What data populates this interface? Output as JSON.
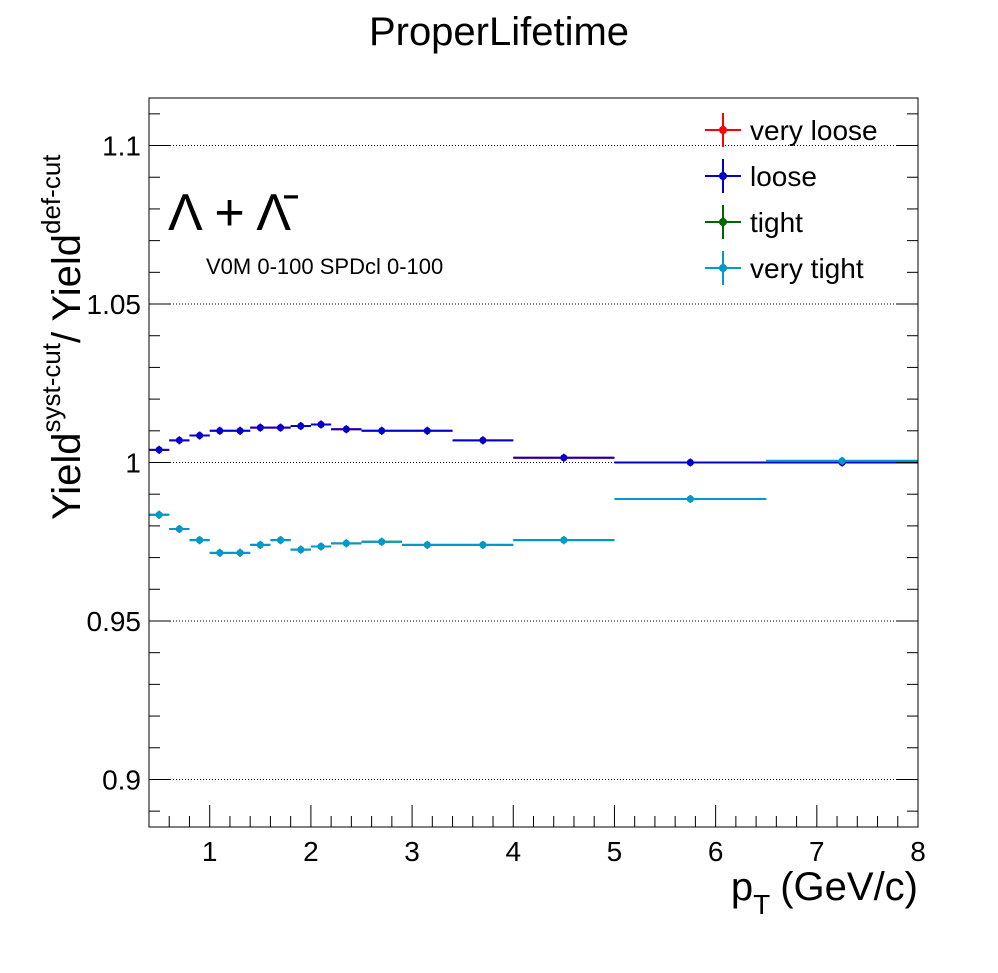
{
  "chart_data": {
    "type": "scatter",
    "title": "ProperLifetime",
    "xlabel": "p",
    "xlabel_sub": "T",
    "xlabel_unit": "(GeV/c)",
    "ylabel_main": "Yield",
    "ylabel_sup_main": "syst-cut",
    "ylabel_div": "/ Yield",
    "ylabel_sup_div": "def-cut",
    "xlim": [
      0.4,
      8.0
    ],
    "ylim": [
      0.885,
      1.115
    ],
    "xticks": [
      1,
      2,
      3,
      4,
      5,
      6,
      7,
      8
    ],
    "xtick_labels": [
      "1",
      "2",
      "3",
      "4",
      "5",
      "6",
      "7",
      "8"
    ],
    "yticks": [
      0.9,
      0.95,
      1.0,
      1.05,
      1.1
    ],
    "ytick_labels": [
      "0.9",
      "0.95",
      "1",
      "1.05",
      "1.1"
    ],
    "grid": "horizontal dotted",
    "legend_position": "top-right",
    "annotation_particle": "Λ + Λ̄",
    "annotation_centrality": "V0M 0-100 SPDcl 0-100",
    "bin_edges": [
      0.4,
      0.6,
      0.8,
      1.0,
      1.2,
      1.4,
      1.6,
      1.8,
      2.0,
      2.2,
      2.5,
      2.9,
      3.4,
      4.0,
      5.0,
      6.5,
      8.0
    ],
    "series": [
      {
        "name": "very loose",
        "color": "#ff0000",
        "values": [
          1.004,
          1.007,
          1.0085,
          1.01,
          1.01,
          1.011,
          1.011,
          1.0115,
          1.012,
          1.0105,
          1.01,
          1.01,
          1.007,
          1.0015,
          1.0,
          1.0
        ]
      },
      {
        "name": "loose",
        "color": "#0000cc",
        "values": [
          1.004,
          1.007,
          1.0085,
          1.01,
          1.01,
          1.011,
          1.011,
          1.0115,
          1.012,
          1.0105,
          1.01,
          1.01,
          1.007,
          1.0015,
          1.0,
          1.0
        ]
      },
      {
        "name": "tight",
        "color": "#006600",
        "values": [
          0.9835,
          0.979,
          0.9755,
          0.9715,
          0.9715,
          0.974,
          0.9755,
          0.9725,
          0.9735,
          0.9745,
          0.975,
          0.974,
          0.974,
          0.9755,
          0.9885,
          1.0005
        ]
      },
      {
        "name": "very tight",
        "color": "#0099cc",
        "values": [
          0.9835,
          0.979,
          0.9755,
          0.9715,
          0.9715,
          0.974,
          0.9755,
          0.9725,
          0.9735,
          0.9745,
          0.975,
          0.974,
          0.974,
          0.9755,
          0.9885,
          1.0005
        ]
      }
    ]
  }
}
